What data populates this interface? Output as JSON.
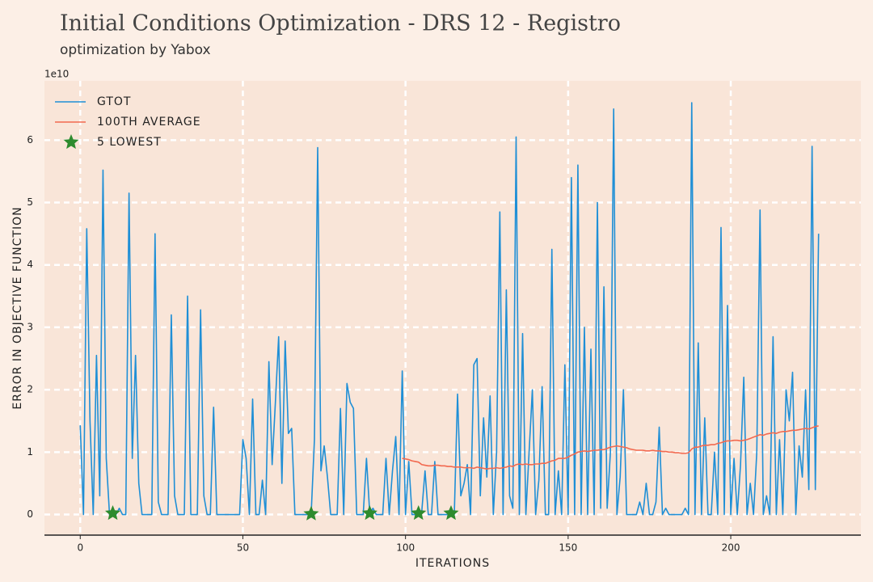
{
  "chart_data": {
    "type": "line",
    "title": "Initial Conditions Optimization - DRS 12 - Registro",
    "subtitle": "optimization by Yabox",
    "x_label": "ITERATIONS",
    "y_label": "ERROR IN OBJECTIVE FUNCTION",
    "y_offset_label": "1e10",
    "xlim": [
      -11,
      240
    ],
    "ylim": [
      -0.33,
      6.95
    ],
    "xticks": [
      0,
      50,
      100,
      150,
      200
    ],
    "yticks": [
      0,
      1,
      2,
      3,
      4,
      5,
      6
    ],
    "grid": true,
    "legend": "upper-left",
    "x": [
      0,
      1,
      2,
      3,
      4,
      5,
      6,
      7,
      8,
      9,
      10,
      11,
      12,
      13,
      14,
      15,
      16,
      17,
      18,
      19,
      20,
      21,
      22,
      23,
      24,
      25,
      26,
      27,
      28,
      29,
      30,
      31,
      32,
      33,
      34,
      35,
      36,
      37,
      38,
      39,
      40,
      41,
      42,
      43,
      44,
      45,
      46,
      47,
      48,
      49,
      50,
      51,
      52,
      53,
      54,
      55,
      56,
      57,
      58,
      59,
      60,
      61,
      62,
      63,
      64,
      65,
      66,
      67,
      68,
      69,
      70,
      71,
      72,
      73,
      74,
      75,
      76,
      77,
      78,
      79,
      80,
      81,
      82,
      83,
      84,
      85,
      86,
      87,
      88,
      89,
      90,
      91,
      92,
      93,
      94,
      95,
      96,
      97,
      98,
      99,
      100,
      101,
      102,
      103,
      104,
      105,
      106,
      107,
      108,
      109,
      110,
      111,
      112,
      113,
      114,
      115,
      116,
      117,
      118,
      119,
      120,
      121,
      122,
      123,
      124,
      125,
      126,
      127,
      128,
      129,
      130,
      131,
      132,
      133,
      134,
      135,
      136,
      137,
      138,
      139,
      140,
      141,
      142,
      143,
      144,
      145,
      146,
      147,
      148,
      149,
      150,
      151,
      152,
      153,
      154,
      155,
      156,
      157,
      158,
      159,
      160,
      161,
      162,
      163,
      164,
      165,
      166,
      167,
      168,
      169,
      170,
      171,
      172,
      173,
      174,
      175,
      176,
      177,
      178,
      179,
      180,
      181,
      182,
      183,
      184,
      185,
      186,
      187,
      188,
      189,
      190,
      191,
      192,
      193,
      194,
      195,
      196,
      197,
      198,
      199,
      200,
      201,
      202,
      203,
      204,
      205,
      206,
      207,
      208,
      209,
      210,
      211,
      212,
      213,
      214,
      215,
      216,
      217,
      218,
      219,
      220,
      221,
      222,
      223,
      224,
      225,
      226,
      227
    ],
    "series": [
      {
        "name": "GTOT",
        "color": "#1f8fd6",
        "marker": "line",
        "values": [
          1.43,
          0.0,
          4.58,
          1.5,
          0.0,
          2.55,
          0.3,
          5.52,
          0.9,
          0.0,
          0.02,
          0.0,
          0.1,
          0.0,
          0.0,
          5.15,
          0.9,
          2.55,
          0.5,
          0.0,
          0.0,
          0.0,
          0.0,
          4.5,
          0.2,
          0.0,
          0.0,
          0.0,
          3.2,
          0.3,
          0.0,
          0.0,
          0.0,
          3.5,
          0.0,
          0.0,
          0.0,
          3.28,
          0.3,
          0.0,
          0.0,
          1.72,
          0.0,
          0.0,
          0.0,
          0.0,
          0.0,
          0.0,
          0.0,
          0.0,
          1.2,
          0.9,
          0.0,
          1.85,
          0.0,
          0.0,
          0.55,
          0.0,
          2.45,
          0.8,
          1.8,
          2.85,
          0.5,
          2.78,
          1.3,
          1.38,
          0.0,
          0.0,
          0.0,
          0.0,
          0.0,
          0.01,
          1.2,
          5.88,
          0.7,
          1.1,
          0.6,
          0.0,
          0.0,
          0.0,
          1.7,
          0.0,
          2.1,
          1.8,
          1.7,
          0.0,
          0.0,
          0.0,
          0.9,
          0.02,
          0.1,
          0.0,
          0.0,
          0.0,
          0.9,
          0.0,
          0.7,
          1.25,
          0.0,
          2.3,
          0.0,
          0.85,
          0.0,
          0.0,
          0.02,
          0.05,
          0.7,
          0.0,
          0.0,
          0.85,
          0.0,
          0.0,
          0.0,
          0.0,
          0.02,
          0.0,
          1.93,
          0.3,
          0.5,
          0.8,
          0.0,
          2.4,
          2.5,
          0.3,
          1.55,
          0.6,
          1.9,
          0.0,
          1.0,
          4.85,
          0.0,
          3.6,
          0.3,
          0.1,
          6.05,
          0.0,
          2.9,
          0.0,
          1.0,
          2.0,
          0.0,
          0.55,
          2.05,
          0.0,
          0.0,
          4.25,
          0.0,
          0.7,
          0.0,
          2.4,
          0.0,
          5.4,
          0.0,
          5.6,
          0.0,
          3.0,
          0.0,
          2.65,
          0.0,
          5.0,
          0.1,
          3.65,
          0.1,
          1.0,
          6.5,
          0.0,
          0.6,
          2.0,
          0.0,
          0.0,
          0.0,
          0.0,
          0.2,
          0.0,
          0.5,
          0.0,
          0.0,
          0.2,
          1.4,
          0.0,
          0.1,
          0.0,
          0.0,
          0.0,
          0.0,
          0.0,
          0.1,
          0.0,
          6.6,
          0.0,
          2.75,
          0.0,
          1.55,
          0.0,
          0.0,
          1.0,
          0.0,
          4.6,
          0.0,
          3.35,
          0.0,
          0.9,
          0.0,
          0.8,
          2.2,
          0.0,
          0.5,
          0.0,
          1.0,
          4.88,
          0.0,
          0.3,
          0.0,
          2.85,
          0.0,
          1.2,
          0.0,
          2.0,
          1.5,
          2.28,
          0.0,
          1.1,
          0.6,
          2.0,
          0.4,
          5.9,
          0.4,
          4.5
        ]
      },
      {
        "name": "100TH AVERAGE",
        "color": "#f2694f",
        "marker": "line",
        "values": [
          null,
          null,
          null,
          null,
          null,
          null,
          null,
          null,
          null,
          null,
          null,
          null,
          null,
          null,
          null,
          null,
          null,
          null,
          null,
          null,
          null,
          null,
          null,
          null,
          null,
          null,
          null,
          null,
          null,
          null,
          null,
          null,
          null,
          null,
          null,
          null,
          null,
          null,
          null,
          null,
          null,
          null,
          null,
          null,
          null,
          null,
          null,
          null,
          null,
          null,
          null,
          null,
          null,
          null,
          null,
          null,
          null,
          null,
          null,
          null,
          null,
          null,
          null,
          null,
          null,
          null,
          null,
          null,
          null,
          null,
          null,
          null,
          null,
          null,
          null,
          null,
          null,
          null,
          null,
          null,
          null,
          null,
          null,
          null,
          null,
          null,
          null,
          null,
          null,
          null,
          null,
          null,
          null,
          null,
          null,
          null,
          null,
          null,
          null,
          0.9,
          0.89,
          0.88,
          0.86,
          0.85,
          0.84,
          0.8,
          0.79,
          0.78,
          0.78,
          0.79,
          0.79,
          0.78,
          0.78,
          0.77,
          0.77,
          0.76,
          0.76,
          0.76,
          0.75,
          0.75,
          0.75,
          0.74,
          0.76,
          0.75,
          0.74,
          0.73,
          0.74,
          0.74,
          0.75,
          0.74,
          0.75,
          0.76,
          0.78,
          0.77,
          0.8,
          0.81,
          0.8,
          0.81,
          0.8,
          0.8,
          0.81,
          0.81,
          0.82,
          0.82,
          0.84,
          0.86,
          0.87,
          0.9,
          0.9,
          0.9,
          0.92,
          0.95,
          0.97,
          1.0,
          1.01,
          1.02,
          1.01,
          1.02,
          1.03,
          1.03,
          1.04,
          1.04,
          1.06,
          1.08,
          1.09,
          1.1,
          1.09,
          1.08,
          1.07,
          1.05,
          1.04,
          1.03,
          1.03,
          1.03,
          1.02,
          1.02,
          1.03,
          1.02,
          1.02,
          1.01,
          1.01,
          1.0,
          1.0,
          0.99,
          0.99,
          0.98,
          0.98,
          0.99,
          1.05,
          1.08,
          1.08,
          1.1,
          1.11,
          1.11,
          1.12,
          1.12,
          1.14,
          1.15,
          1.17,
          1.18,
          1.18,
          1.19,
          1.19,
          1.18,
          1.19,
          1.2,
          1.22,
          1.24,
          1.26,
          1.28,
          1.27,
          1.29,
          1.3,
          1.31,
          1.3,
          1.32,
          1.33,
          1.33,
          1.34,
          1.35,
          1.35,
          1.36,
          1.37,
          1.38,
          1.37,
          1.39,
          1.41,
          1.42
        ]
      },
      {
        "name": "5 LOWEST",
        "color": "#2e8b2e",
        "marker": "star",
        "x": [
          10,
          71,
          89,
          104,
          114
        ],
        "values": [
          0.02,
          0.01,
          0.02,
          0.02,
          0.02
        ]
      }
    ]
  }
}
